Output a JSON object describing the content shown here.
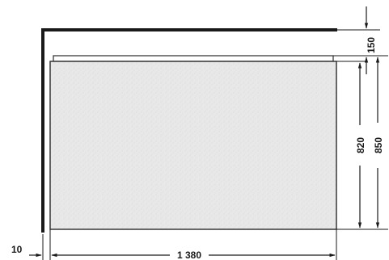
{
  "dimensions": {
    "top_offset": "150",
    "panel_height": "820",
    "total_height": "850",
    "side_offset": "10",
    "width": "1 380"
  },
  "colors": {
    "line": "#1a1a1a",
    "panel_fill": "#e6e6e6",
    "panel_stroke": "#2a2a2a",
    "background": "#ffffff"
  }
}
